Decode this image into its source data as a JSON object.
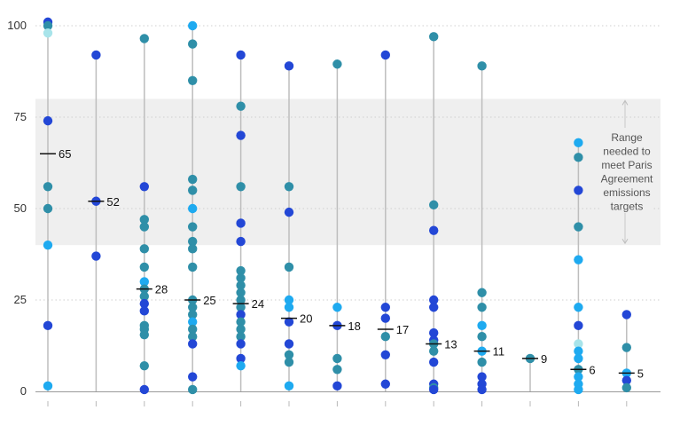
{
  "chart_data": {
    "type": "scatter",
    "title": "",
    "xlabel": "",
    "ylabel": "",
    "ylim": [
      0,
      100
    ],
    "yticks": [
      0,
      25,
      50,
      75,
      100
    ],
    "grid": true,
    "band": {
      "from": 40,
      "to": 80,
      "label_lines": [
        "Range",
        "needed to",
        "meet Paris",
        "Agreement",
        "emissions",
        "targets"
      ]
    },
    "colors": {
      "dark": "#2347d6",
      "mid": "#2f8fa8",
      "light": "#1eaaf0",
      "pale": "#a8e4ea",
      "stem": "#bdbdbd",
      "band": "#efefef"
    },
    "columns": [
      {
        "median": 65,
        "points": [
          [
            101,
            "dark"
          ],
          [
            100,
            "mid"
          ],
          [
            98,
            "pale"
          ],
          [
            74,
            "dark"
          ],
          [
            56,
            "mid"
          ],
          [
            50,
            "mid"
          ],
          [
            40,
            "light"
          ],
          [
            18,
            "dark"
          ],
          [
            1.5,
            "light"
          ]
        ]
      },
      {
        "median": 52,
        "points": [
          [
            92,
            "dark"
          ],
          [
            52,
            "dark"
          ],
          [
            37,
            "dark"
          ]
        ]
      },
      {
        "median": 28,
        "points": [
          [
            96.5,
            "mid"
          ],
          [
            56,
            "dark"
          ],
          [
            47,
            "mid"
          ],
          [
            45,
            "mid"
          ],
          [
            39,
            "mid"
          ],
          [
            34,
            "mid"
          ],
          [
            30,
            "light"
          ],
          [
            28,
            "mid"
          ],
          [
            26,
            "mid"
          ],
          [
            24,
            "dark"
          ],
          [
            22,
            "dark"
          ],
          [
            18,
            "mid"
          ],
          [
            17,
            "mid"
          ],
          [
            15.5,
            "mid"
          ],
          [
            7,
            "mid"
          ],
          [
            0.5,
            "dark"
          ]
        ]
      },
      {
        "median": 25,
        "points": [
          [
            100,
            "light"
          ],
          [
            95,
            "mid"
          ],
          [
            85,
            "mid"
          ],
          [
            58,
            "mid"
          ],
          [
            55,
            "mid"
          ],
          [
            50,
            "light"
          ],
          [
            45,
            "mid"
          ],
          [
            41,
            "mid"
          ],
          [
            39,
            "mid"
          ],
          [
            34,
            "mid"
          ],
          [
            25,
            "mid"
          ],
          [
            23,
            "mid"
          ],
          [
            21,
            "mid"
          ],
          [
            19,
            "light"
          ],
          [
            17,
            "mid"
          ],
          [
            15,
            "mid"
          ],
          [
            13,
            "dark"
          ],
          [
            4,
            "dark"
          ],
          [
            0.5,
            "mid"
          ]
        ]
      },
      {
        "median": 24,
        "points": [
          [
            92,
            "dark"
          ],
          [
            78,
            "mid"
          ],
          [
            70,
            "dark"
          ],
          [
            56,
            "mid"
          ],
          [
            46,
            "dark"
          ],
          [
            41,
            "dark"
          ],
          [
            33,
            "mid"
          ],
          [
            31,
            "mid"
          ],
          [
            29,
            "mid"
          ],
          [
            27,
            "mid"
          ],
          [
            25,
            "mid"
          ],
          [
            23,
            "mid"
          ],
          [
            21,
            "dark"
          ],
          [
            19,
            "mid"
          ],
          [
            17,
            "mid"
          ],
          [
            15,
            "mid"
          ],
          [
            13,
            "dark"
          ],
          [
            9,
            "dark"
          ],
          [
            7,
            "light"
          ]
        ]
      },
      {
        "median": 20,
        "points": [
          [
            89,
            "dark"
          ],
          [
            56,
            "mid"
          ],
          [
            49,
            "dark"
          ],
          [
            34,
            "mid"
          ],
          [
            25,
            "light"
          ],
          [
            23,
            "light"
          ],
          [
            19,
            "dark"
          ],
          [
            13,
            "dark"
          ],
          [
            10,
            "mid"
          ],
          [
            8,
            "mid"
          ],
          [
            1.5,
            "light"
          ]
        ]
      },
      {
        "median": 18,
        "points": [
          [
            89.5,
            "mid"
          ],
          [
            23,
            "light"
          ],
          [
            18,
            "dark"
          ],
          [
            9,
            "mid"
          ],
          [
            6,
            "mid"
          ],
          [
            1.5,
            "dark"
          ]
        ]
      },
      {
        "median": 17,
        "points": [
          [
            92,
            "dark"
          ],
          [
            23,
            "dark"
          ],
          [
            20,
            "dark"
          ],
          [
            15,
            "mid"
          ],
          [
            10,
            "dark"
          ],
          [
            2,
            "dark"
          ]
        ]
      },
      {
        "median": 13,
        "points": [
          [
            97,
            "mid"
          ],
          [
            51,
            "mid"
          ],
          [
            44,
            "dark"
          ],
          [
            25,
            "dark"
          ],
          [
            23,
            "dark"
          ],
          [
            16,
            "dark"
          ],
          [
            14,
            "dark"
          ],
          [
            13,
            "mid"
          ],
          [
            11,
            "mid"
          ],
          [
            8,
            "dark"
          ],
          [
            2,
            "dark"
          ],
          [
            1,
            "mid"
          ],
          [
            0.5,
            "dark"
          ]
        ]
      },
      {
        "median": 11,
        "points": [
          [
            89,
            "mid"
          ],
          [
            27,
            "mid"
          ],
          [
            23,
            "mid"
          ],
          [
            18,
            "light"
          ],
          [
            15,
            "mid"
          ],
          [
            11,
            "light"
          ],
          [
            8,
            "mid"
          ],
          [
            4,
            "dark"
          ],
          [
            2,
            "dark"
          ],
          [
            0.5,
            "dark"
          ]
        ]
      },
      {
        "median": 9,
        "points": [
          [
            9,
            "mid"
          ]
        ]
      },
      {
        "median": 6,
        "points": [
          [
            68,
            "light"
          ],
          [
            64,
            "mid"
          ],
          [
            55,
            "dark"
          ],
          [
            45,
            "mid"
          ],
          [
            36,
            "light"
          ],
          [
            23,
            "light"
          ],
          [
            18,
            "dark"
          ],
          [
            13,
            "pale"
          ],
          [
            11,
            "light"
          ],
          [
            9,
            "light"
          ],
          [
            6,
            "mid"
          ],
          [
            4,
            "light"
          ],
          [
            2,
            "light"
          ],
          [
            0.5,
            "light"
          ]
        ]
      },
      {
        "median": 5,
        "points": [
          [
            21,
            "dark"
          ],
          [
            12,
            "mid"
          ],
          [
            5,
            "light"
          ],
          [
            3,
            "dark"
          ],
          [
            1,
            "mid"
          ]
        ]
      }
    ]
  }
}
